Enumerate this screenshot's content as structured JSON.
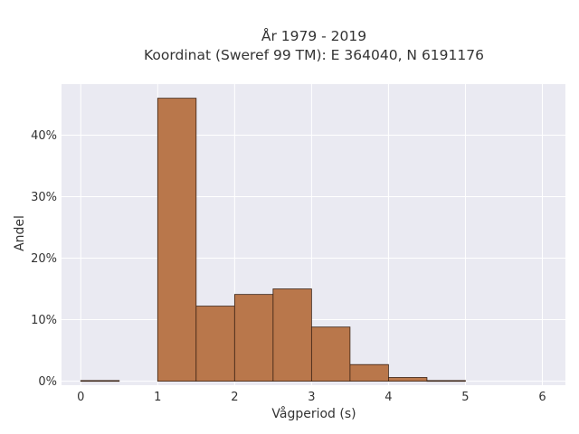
{
  "chart_data": {
    "type": "bar",
    "title_line1": "År 1979 - 2019",
    "title_line2": "Koordinat (Sweref 99 TM): E 364040, N 6191176",
    "xlabel": "Vågperiod (s)",
    "ylabel": "Andel",
    "xlim": [
      -0.25,
      6.3
    ],
    "ylim": [
      -0.0065,
      0.483
    ],
    "x_ticks": [
      0,
      1,
      2,
      3,
      4,
      5,
      6
    ],
    "x_tick_labels": [
      "0",
      "1",
      "2",
      "3",
      "4",
      "5",
      "6"
    ],
    "y_ticks": [
      0,
      0.1,
      0.2,
      0.3,
      0.4
    ],
    "y_tick_labels": [
      "0%",
      "10%",
      "20%",
      "30%",
      "40%"
    ],
    "grid": true,
    "bins": [
      {
        "x0": 0.0,
        "x1": 0.5,
        "value": 0.001
      },
      {
        "x0": 0.5,
        "x1": 1.0,
        "value": 0.0
      },
      {
        "x0": 1.0,
        "x1": 1.5,
        "value": 0.46
      },
      {
        "x0": 1.5,
        "x1": 2.0,
        "value": 0.122
      },
      {
        "x0": 2.0,
        "x1": 2.5,
        "value": 0.141
      },
      {
        "x0": 2.5,
        "x1": 3.0,
        "value": 0.15
      },
      {
        "x0": 3.0,
        "x1": 3.5,
        "value": 0.088
      },
      {
        "x0": 3.5,
        "x1": 4.0,
        "value": 0.027
      },
      {
        "x0": 4.0,
        "x1": 4.5,
        "value": 0.006
      },
      {
        "x0": 4.5,
        "x1": 5.0,
        "value": 0.001
      }
    ],
    "colors": {
      "bar_fill": "#b9774b",
      "bar_stroke": "#3a2214",
      "plot_background": "#eaeaf2",
      "grid": "#ffffff"
    }
  }
}
